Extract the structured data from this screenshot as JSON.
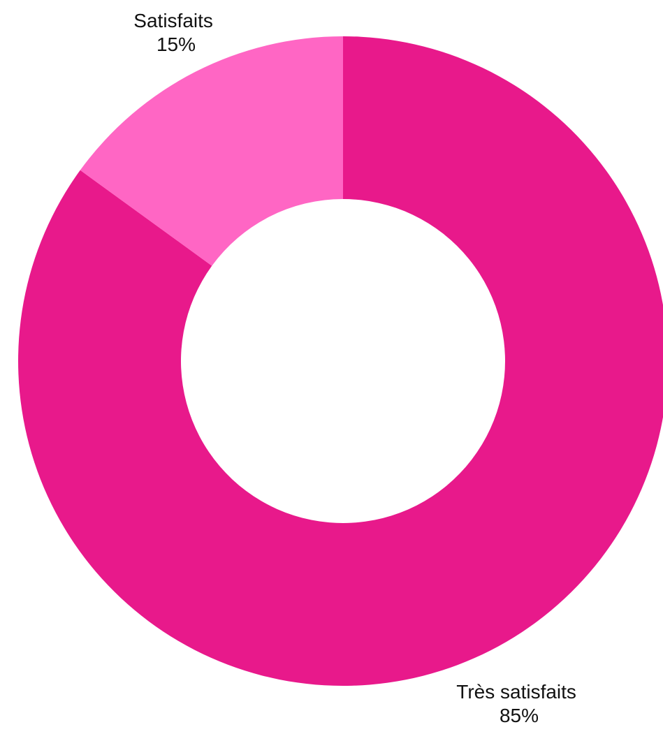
{
  "chart_data": {
    "type": "pie",
    "variant": "donut",
    "title": "",
    "slices": [
      {
        "label": "Très satisfaits",
        "value": 85,
        "value_label": "85%",
        "color": "#e8198b"
      },
      {
        "label": "Satisfaits",
        "value": 15,
        "value_label": "15%",
        "color": "#ff66c4"
      }
    ],
    "start_angle_deg": 0,
    "direction": "clockwise",
    "background": "#ffffff"
  }
}
